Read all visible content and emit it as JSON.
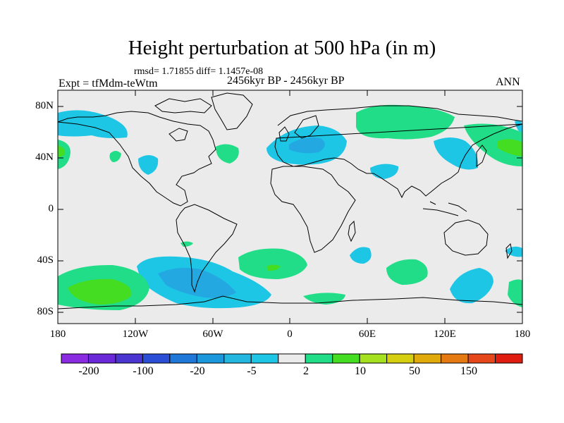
{
  "figure": {
    "title": "Height perturbation at 500 hPa (in m)",
    "stats": "rmsd= 1.71855 diff= 1.1457e-08",
    "left_label": "Expt = tfMdm-teWtm",
    "center_label": "2456kyr BP - 2456kyr BP",
    "right_label": "ANN"
  },
  "axes": {
    "lat_labels": [
      "80N",
      "40N",
      "0",
      "40S",
      "80S"
    ],
    "lon_labels": [
      "180",
      "120W",
      "60W",
      "0",
      "60E",
      "120E",
      "180"
    ]
  },
  "colorbar": {
    "labels": [
      "-200",
      "-100",
      "-20",
      "-5",
      "2",
      "10",
      "50",
      "150"
    ],
    "colors": [
      "#8a2be2",
      "#6b28d8",
      "#4a35d0",
      "#2a4fd6",
      "#1f78d8",
      "#1b97dc",
      "#23b7e0",
      "#1ec6e6",
      "#ebebeb",
      "#22dd88",
      "#44dd22",
      "#a6e11f",
      "#d6cf0f",
      "#dfaa0a",
      "#e57a12",
      "#e5471a",
      "#e01c10"
    ]
  },
  "colors": {
    "background": "#ebebeb",
    "negative_weak": "#1ec6e6",
    "negative_mid": "#23a8e2",
    "positive_weak": "#22dd88",
    "positive_mid": "#44dd22"
  }
}
